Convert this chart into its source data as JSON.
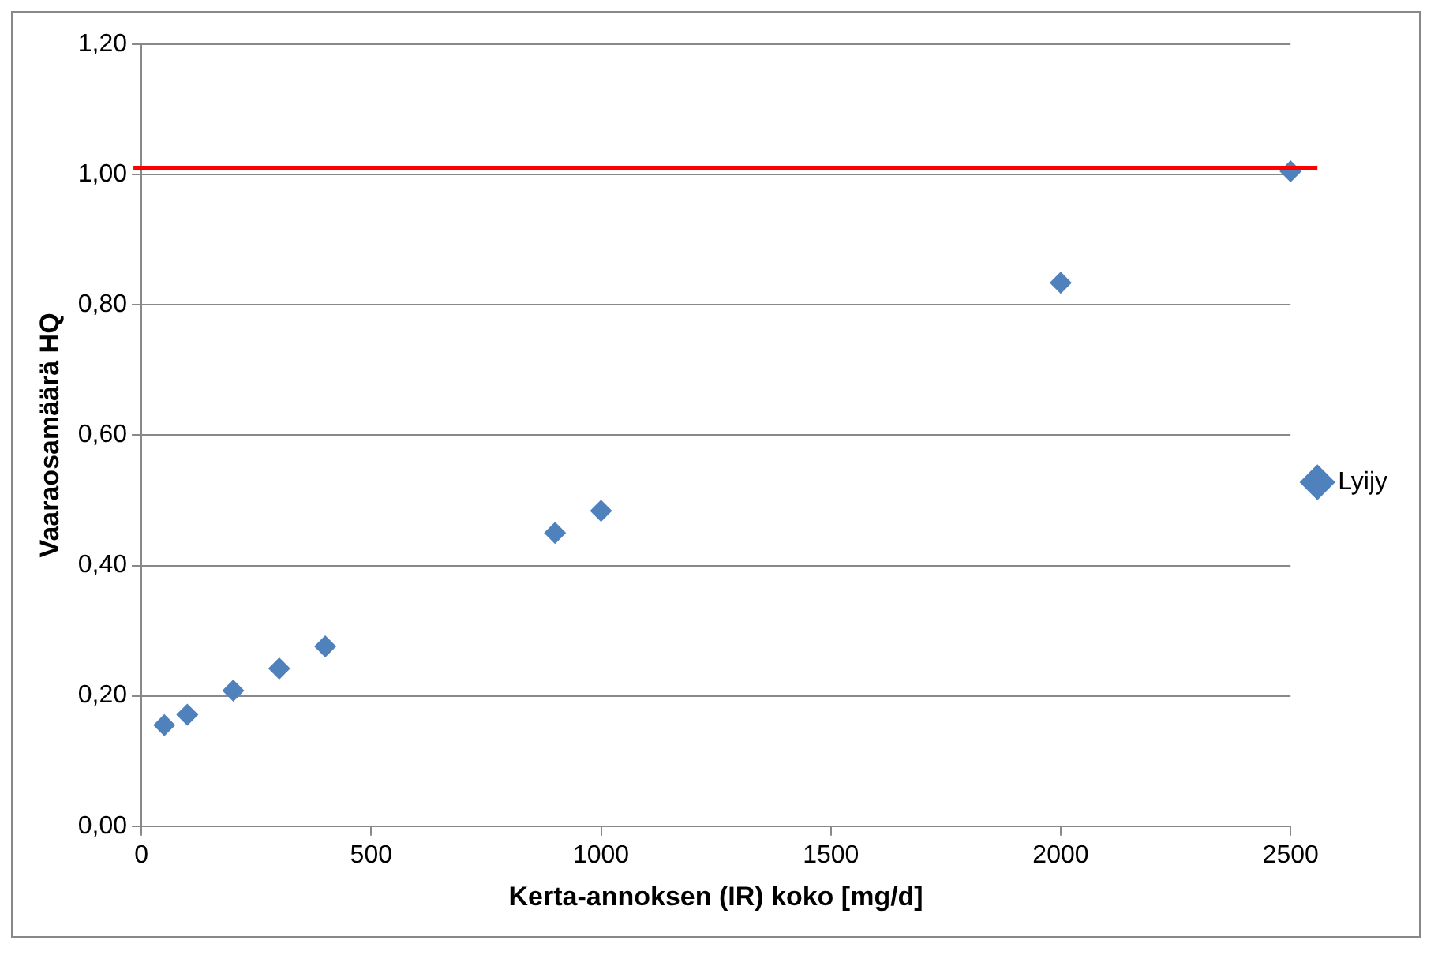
{
  "chart_data": {
    "type": "scatter",
    "xlabel": "Kerta-annoksen (IR) koko [mg/d]",
    "ylabel": "Vaaraosamäärä HQ",
    "x": [
      50,
      100,
      200,
      300,
      400,
      900,
      1000,
      2000,
      2500
    ],
    "series": [
      {
        "name": "Lyijy",
        "color": "#4f81bd",
        "values": [
          0.155,
          0.171,
          0.208,
          0.242,
          0.276,
          0.45,
          0.484,
          0.834,
          1.005
        ]
      }
    ],
    "xlim": [
      0,
      2500
    ],
    "xticks": [
      0,
      500,
      1000,
      1500,
      2000,
      2500
    ],
    "ylim": [
      0,
      1.2
    ],
    "yticks": [
      {
        "value": 0,
        "label": "0,00"
      },
      {
        "value": 0.2,
        "label": "0,20"
      },
      {
        "value": 0.4,
        "label": "0,40"
      },
      {
        "value": 0.6,
        "label": "0,60"
      },
      {
        "value": 0.8,
        "label": "0,80"
      },
      {
        "value": 1,
        "label": "1,00"
      },
      {
        "value": 1.2,
        "label": "1,20"
      }
    ],
    "ref_lines": [
      {
        "axis": "y",
        "value": 1.01,
        "color": "#ff0000",
        "line_style": "solid"
      }
    ],
    "grid": "y",
    "legend": "right",
    "marker": "diamond"
  }
}
